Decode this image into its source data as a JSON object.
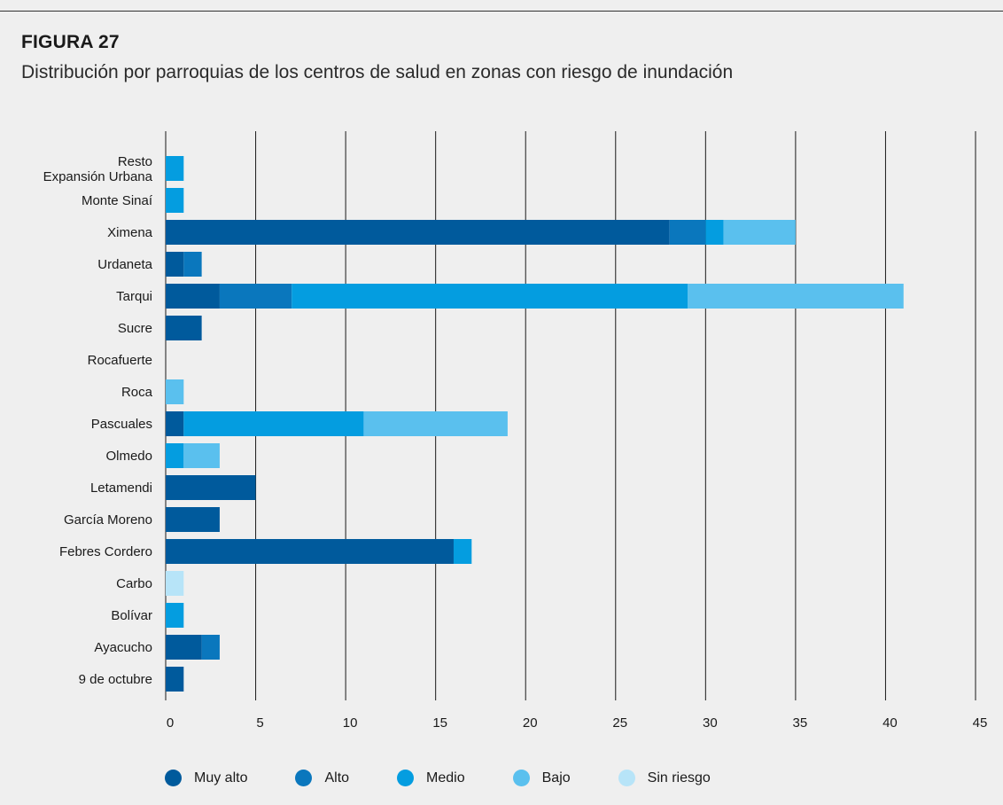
{
  "figure": {
    "label": "FIGURA 27",
    "title": "Distribución por parroquias de los centros de salud en zonas con riesgo de inundación"
  },
  "chart_data": {
    "type": "bar",
    "orientation": "horizontal",
    "stacked": true,
    "categories": [
      "Resto\nExpansión Urbana",
      "Monte Sinaí",
      "Ximena",
      "Urdaneta",
      "Tarqui",
      "Sucre",
      "Rocafuerte",
      "Roca",
      "Pascuales",
      "Olmedo",
      "Letamendi",
      "García Moreno",
      "Febres Cordero",
      "Carbo",
      "Bolívar",
      "Ayacucho",
      "9 de octubre"
    ],
    "series": [
      {
        "name": "Muy alto",
        "color": "#005a9c",
        "values": [
          0,
          0,
          28,
          1,
          3,
          2,
          0,
          0,
          1,
          0,
          5,
          3,
          16,
          0,
          0,
          2,
          1
        ]
      },
      {
        "name": "Alto",
        "color": "#0a77bd",
        "values": [
          0,
          0,
          2,
          1,
          4,
          0,
          0,
          0,
          0,
          0,
          0,
          0,
          0,
          0,
          0,
          1,
          0
        ]
      },
      {
        "name": "Medio",
        "color": "#049de0",
        "values": [
          1,
          1,
          1,
          0,
          22,
          0,
          0,
          0,
          10,
          1,
          0,
          0,
          1,
          0,
          1,
          0,
          0
        ]
      },
      {
        "name": "Bajo",
        "color": "#5ac0ee",
        "values": [
          0,
          0,
          4,
          0,
          12,
          0,
          0,
          1,
          8,
          2,
          0,
          0,
          0,
          0,
          0,
          0,
          0
        ]
      },
      {
        "name": "Sin riesgo",
        "color": "#b7e4f8",
        "values": [
          0,
          0,
          0,
          0,
          0,
          0,
          0,
          0,
          0,
          0,
          0,
          0,
          0,
          1,
          0,
          0,
          0
        ]
      }
    ],
    "xlim": [
      0,
      45
    ],
    "xticks": [
      "0",
      "5",
      "10",
      "15",
      "20",
      "25",
      "30",
      "35",
      "40",
      "45"
    ],
    "grid": "vertical",
    "legend_position": "bottom"
  }
}
